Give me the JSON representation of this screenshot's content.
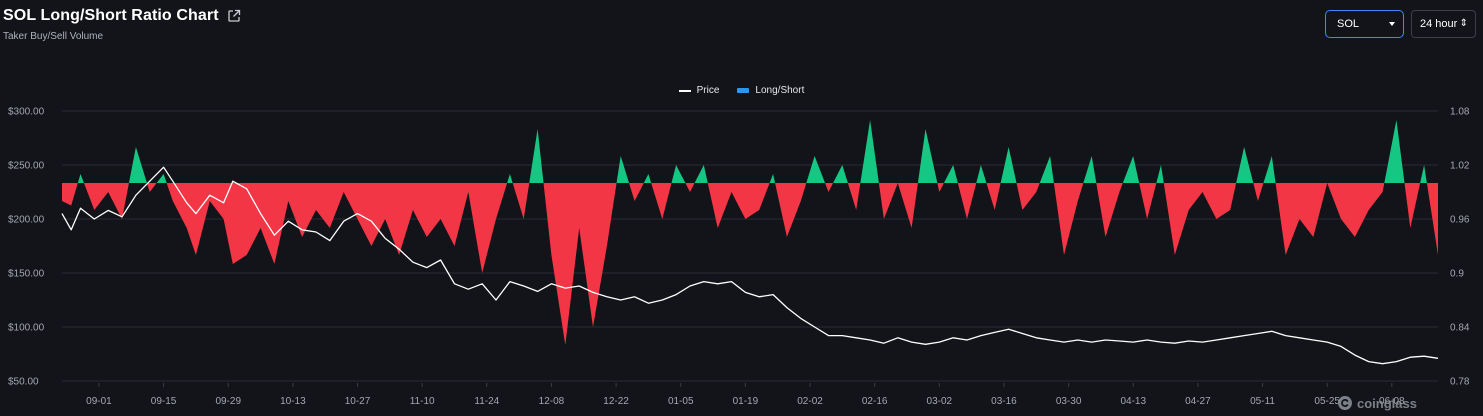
{
  "header": {
    "title": "SOL Long/Short Ratio Chart",
    "subtitle": "Taker Buy/Sell Volume"
  },
  "controls": {
    "coin_value": "SOL",
    "period_value": "24 hour"
  },
  "legend": {
    "price_label": "Price",
    "ratio_label": "Long/Short"
  },
  "watermark": "coinglass",
  "colors": {
    "positive": "#16c784",
    "negative": "#f23645",
    "price_line": "#ffffff",
    "ratio_legend": "#2f95e8"
  },
  "chart_data": {
    "type": "area",
    "title": "SOL Long/Short Ratio Chart",
    "subtitle": "Taker Buy/Sell Volume",
    "y_left": {
      "ticks": [
        "$300.00",
        "$250.00",
        "$200.00",
        "$150.00",
        "$100.00",
        "$50.00"
      ],
      "range": [
        50,
        300
      ]
    },
    "y_right": {
      "ticks": [
        "1.08",
        "1.02",
        "0.96",
        "0.9",
        "0.84",
        "0.78"
      ],
      "range": [
        0.78,
        1.08
      ],
      "baseline": 1.0
    },
    "x_ticks": [
      "09-01",
      "09-15",
      "09-29",
      "10-13",
      "10-27",
      "11-10",
      "11-24",
      "12-08",
      "12-22",
      "01-05",
      "01-19",
      "02-02",
      "02-16",
      "03-02",
      "03-16",
      "03-30",
      "04-13",
      "04-27",
      "05-11",
      "05-25",
      "06-08"
    ],
    "series": [
      {
        "name": "Price",
        "axis": "left",
        "points": [
          [
            "08-24",
            205
          ],
          [
            "08-26",
            190
          ],
          [
            "08-28",
            210
          ],
          [
            "08-31",
            200
          ],
          [
            "09-03",
            208
          ],
          [
            "09-06",
            202
          ],
          [
            "09-09",
            222
          ],
          [
            "09-12",
            235
          ],
          [
            "09-15",
            248
          ],
          [
            "09-17",
            235
          ],
          [
            "09-20",
            215
          ],
          [
            "09-22",
            205
          ],
          [
            "09-25",
            222
          ],
          [
            "09-28",
            215
          ],
          [
            "09-30",
            235
          ],
          [
            "10-03",
            228
          ],
          [
            "10-06",
            205
          ],
          [
            "10-09",
            185
          ],
          [
            "10-12",
            198
          ],
          [
            "10-15",
            190
          ],
          [
            "10-18",
            188
          ],
          [
            "10-21",
            180
          ],
          [
            "10-24",
            198
          ],
          [
            "10-27",
            205
          ],
          [
            "10-30",
            198
          ],
          [
            "11-02",
            182
          ],
          [
            "11-05",
            172
          ],
          [
            "11-08",
            160
          ],
          [
            "11-11",
            155
          ],
          [
            "11-14",
            162
          ],
          [
            "11-17",
            140
          ],
          [
            "11-20",
            135
          ],
          [
            "11-23",
            140
          ],
          [
            "11-26",
            125
          ],
          [
            "11-29",
            142
          ],
          [
            "12-02",
            138
          ],
          [
            "12-05",
            133
          ],
          [
            "12-08",
            140
          ],
          [
            "12-11",
            136
          ],
          [
            "12-14",
            138
          ],
          [
            "12-17",
            132
          ],
          [
            "12-20",
            128
          ],
          [
            "12-23",
            125
          ],
          [
            "12-26",
            128
          ],
          [
            "12-29",
            122
          ],
          [
            "01-01",
            125
          ],
          [
            "01-04",
            130
          ],
          [
            "01-07",
            138
          ],
          [
            "01-10",
            142
          ],
          [
            "01-13",
            140
          ],
          [
            "01-16",
            142
          ],
          [
            "01-19",
            132
          ],
          [
            "01-22",
            128
          ],
          [
            "01-25",
            130
          ],
          [
            "01-28",
            118
          ],
          [
            "01-31",
            108
          ],
          [
            "02-03",
            100
          ],
          [
            "02-06",
            92
          ],
          [
            "02-09",
            92
          ],
          [
            "02-12",
            90
          ],
          [
            "02-15",
            88
          ],
          [
            "02-18",
            85
          ],
          [
            "02-21",
            90
          ],
          [
            "02-24",
            86
          ],
          [
            "02-27",
            84
          ],
          [
            "03-02",
            86
          ],
          [
            "03-05",
            90
          ],
          [
            "03-08",
            88
          ],
          [
            "03-11",
            92
          ],
          [
            "03-14",
            95
          ],
          [
            "03-17",
            98
          ],
          [
            "03-20",
            94
          ],
          [
            "03-23",
            90
          ],
          [
            "03-26",
            88
          ],
          [
            "03-29",
            86
          ],
          [
            "04-01",
            88
          ],
          [
            "04-04",
            86
          ],
          [
            "04-07",
            88
          ],
          [
            "04-10",
            87
          ],
          [
            "04-13",
            86
          ],
          [
            "04-16",
            88
          ],
          [
            "04-19",
            86
          ],
          [
            "04-22",
            85
          ],
          [
            "04-25",
            87
          ],
          [
            "04-28",
            86
          ],
          [
            "05-01",
            88
          ],
          [
            "05-04",
            90
          ],
          [
            "05-07",
            92
          ],
          [
            "05-10",
            94
          ],
          [
            "05-13",
            96
          ],
          [
            "05-16",
            92
          ],
          [
            "05-19",
            90
          ],
          [
            "05-22",
            88
          ],
          [
            "05-25",
            86
          ],
          [
            "05-28",
            82
          ],
          [
            "05-31",
            74
          ],
          [
            "06-03",
            68
          ],
          [
            "06-06",
            66
          ],
          [
            "06-09",
            68
          ],
          [
            "06-12",
            72
          ],
          [
            "06-15",
            73
          ],
          [
            "06-18",
            71
          ]
        ]
      },
      {
        "name": "Long/Short",
        "axis": "right",
        "points": [
          [
            "08-24",
            0.98
          ],
          [
            "08-26",
            0.975
          ],
          [
            "08-28",
            1.01
          ],
          [
            "08-31",
            0.97
          ],
          [
            "09-03",
            0.99
          ],
          [
            "09-06",
            0.96
          ],
          [
            "09-09",
            1.04
          ],
          [
            "09-12",
            0.99
          ],
          [
            "09-15",
            1.01
          ],
          [
            "09-17",
            0.98
          ],
          [
            "09-20",
            0.95
          ],
          [
            "09-22",
            0.92
          ],
          [
            "09-25",
            0.98
          ],
          [
            "09-28",
            0.96
          ],
          [
            "09-30",
            0.91
          ],
          [
            "10-03",
            0.92
          ],
          [
            "10-06",
            0.95
          ],
          [
            "10-09",
            0.91
          ],
          [
            "10-12",
            0.98
          ],
          [
            "10-15",
            0.94
          ],
          [
            "10-18",
            0.97
          ],
          [
            "10-21",
            0.95
          ],
          [
            "10-24",
            0.99
          ],
          [
            "10-27",
            0.96
          ],
          [
            "10-30",
            0.93
          ],
          [
            "11-02",
            0.96
          ],
          [
            "11-05",
            0.92
          ],
          [
            "11-08",
            0.97
          ],
          [
            "11-11",
            0.94
          ],
          [
            "11-14",
            0.96
          ],
          [
            "11-17",
            0.93
          ],
          [
            "11-20",
            0.99
          ],
          [
            "11-23",
            0.9
          ],
          [
            "11-26",
            0.96
          ],
          [
            "11-29",
            1.01
          ],
          [
            "12-02",
            0.96
          ],
          [
            "12-05",
            1.06
          ],
          [
            "12-08",
            0.92
          ],
          [
            "12-11",
            0.82
          ],
          [
            "12-14",
            0.95
          ],
          [
            "12-17",
            0.84
          ],
          [
            "12-20",
            0.93
          ],
          [
            "12-23",
            1.03
          ],
          [
            "12-26",
            0.98
          ],
          [
            "12-29",
            1.01
          ],
          [
            "01-01",
            0.96
          ],
          [
            "01-04",
            1.02
          ],
          [
            "01-07",
            0.99
          ],
          [
            "01-10",
            1.02
          ],
          [
            "01-13",
            0.95
          ],
          [
            "01-16",
            0.99
          ],
          [
            "01-19",
            0.96
          ],
          [
            "01-22",
            0.97
          ],
          [
            "01-25",
            1.01
          ],
          [
            "01-28",
            0.94
          ],
          [
            "01-31",
            0.98
          ],
          [
            "02-03",
            1.03
          ],
          [
            "02-06",
            0.99
          ],
          [
            "02-09",
            1.02
          ],
          [
            "02-12",
            0.97
          ],
          [
            "02-15",
            1.07
          ],
          [
            "02-18",
            0.96
          ],
          [
            "02-21",
            1.0
          ],
          [
            "02-24",
            0.95
          ],
          [
            "02-27",
            1.06
          ],
          [
            "03-02",
            0.99
          ],
          [
            "03-05",
            1.02
          ],
          [
            "03-08",
            0.96
          ],
          [
            "03-11",
            1.02
          ],
          [
            "03-14",
            0.97
          ],
          [
            "03-17",
            1.04
          ],
          [
            "03-20",
            0.97
          ],
          [
            "03-23",
            0.99
          ],
          [
            "03-26",
            1.03
          ],
          [
            "03-29",
            0.92
          ],
          [
            "04-01",
            0.98
          ],
          [
            "04-04",
            1.03
          ],
          [
            "04-07",
            0.94
          ],
          [
            "04-10",
            0.99
          ],
          [
            "04-13",
            1.03
          ],
          [
            "04-16",
            0.96
          ],
          [
            "04-19",
            1.02
          ],
          [
            "04-22",
            0.92
          ],
          [
            "04-25",
            0.97
          ],
          [
            "04-28",
            0.99
          ],
          [
            "05-01",
            0.96
          ],
          [
            "05-04",
            0.97
          ],
          [
            "05-07",
            1.04
          ],
          [
            "05-10",
            0.98
          ],
          [
            "05-13",
            1.03
          ],
          [
            "05-16",
            0.92
          ],
          [
            "05-19",
            0.96
          ],
          [
            "05-22",
            0.94
          ],
          [
            "05-25",
            1.0
          ],
          [
            "05-28",
            0.96
          ],
          [
            "05-31",
            0.94
          ],
          [
            "06-03",
            0.97
          ],
          [
            "06-06",
            0.99
          ],
          [
            "06-09",
            1.07
          ],
          [
            "06-12",
            0.95
          ],
          [
            "06-15",
            1.02
          ],
          [
            "06-18",
            0.92
          ]
        ]
      }
    ],
    "grid": true,
    "legend_position": "top-center"
  }
}
